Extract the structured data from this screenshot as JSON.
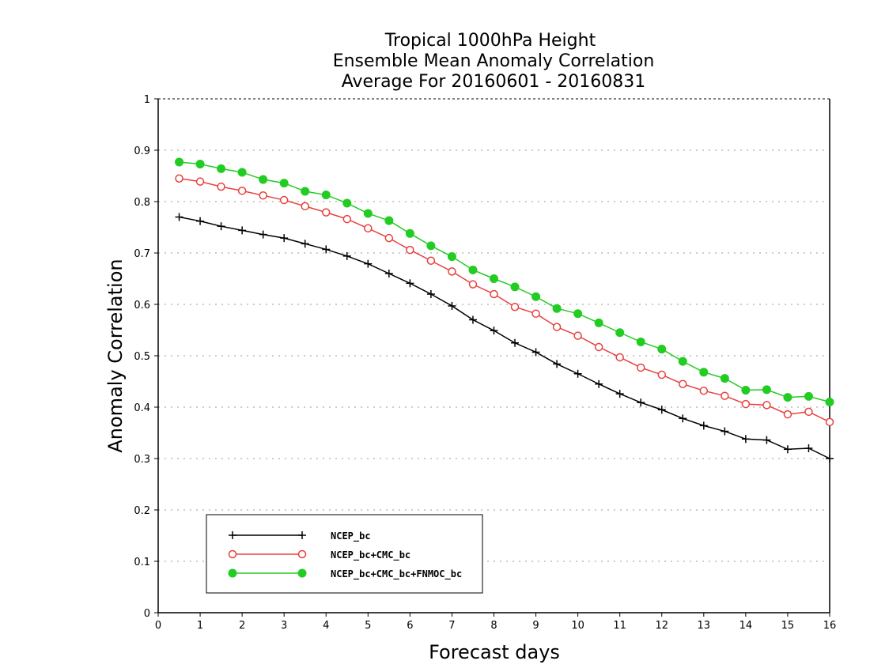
{
  "chart_data": {
    "type": "line",
    "title": [
      "Tropical 1000hPa Height",
      "Ensemble Mean Anomaly Correlation",
      "Average For 20160601 - 20160831"
    ],
    "xlabel": "Forecast days",
    "ylabel": "Anomaly Correlation",
    "xlim": [
      0,
      16
    ],
    "ylim": [
      0,
      1
    ],
    "xticks": [
      0,
      1,
      2,
      3,
      4,
      5,
      6,
      7,
      8,
      9,
      10,
      11,
      12,
      13,
      14,
      15,
      16
    ],
    "yticks": [
      0,
      0.1,
      0.2,
      0.3,
      0.4,
      0.5,
      0.6,
      0.7,
      0.8,
      0.9,
      1
    ],
    "xtick_labels": [
      "0",
      "1",
      "2",
      "3",
      "4",
      "5",
      "6",
      "7",
      "8",
      "9",
      "10",
      "11",
      "12",
      "13",
      "14",
      "15",
      "16"
    ],
    "ytick_labels": [
      "0",
      "0.1",
      "0.2",
      "0.3",
      "0.4",
      "0.5",
      "0.6",
      "0.7",
      "0.8",
      "0.9",
      "1"
    ],
    "grid": "horizontal dotted",
    "legend_position": "bottom-left",
    "x": [
      0.5,
      1,
      1.5,
      2,
      2.5,
      3,
      3.5,
      4,
      4.5,
      5,
      5.5,
      6,
      6.5,
      7,
      7.5,
      8,
      8.5,
      9,
      9.5,
      10,
      10.5,
      11,
      11.5,
      12,
      12.5,
      13,
      13.5,
      14,
      14.5,
      15,
      15.5,
      16
    ],
    "series": [
      {
        "name": "NCEP_bc",
        "color": "#000000",
        "marker": "plus",
        "values": [
          0.77,
          0.762,
          0.752,
          0.744,
          0.736,
          0.729,
          0.718,
          0.707,
          0.694,
          0.679,
          0.66,
          0.641,
          0.62,
          0.597,
          0.57,
          0.549,
          0.525,
          0.507,
          0.484,
          0.465,
          0.445,
          0.426,
          0.409,
          0.395,
          0.378,
          0.364,
          0.353,
          0.338,
          0.336,
          0.318,
          0.32,
          0.3
        ]
      },
      {
        "name": "NCEP_bc+CMC_bc",
        "color": "#e8403c",
        "marker": "open-circle",
        "values": [
          0.845,
          0.839,
          0.829,
          0.821,
          0.812,
          0.803,
          0.791,
          0.779,
          0.766,
          0.748,
          0.729,
          0.706,
          0.685,
          0.664,
          0.639,
          0.62,
          0.595,
          0.582,
          0.556,
          0.539,
          0.517,
          0.497,
          0.477,
          0.463,
          0.445,
          0.432,
          0.422,
          0.406,
          0.404,
          0.386,
          0.391,
          0.371
        ]
      },
      {
        "name": "NCEP_bc+CMC_bc+FNMOC_bc",
        "color": "#22cc22",
        "marker": "filled-circle",
        "values": [
          0.877,
          0.873,
          0.864,
          0.857,
          0.843,
          0.836,
          0.82,
          0.813,
          0.797,
          0.777,
          0.763,
          0.738,
          0.714,
          0.693,
          0.667,
          0.65,
          0.634,
          0.615,
          0.592,
          0.582,
          0.564,
          0.545,
          0.527,
          0.513,
          0.489,
          0.468,
          0.456,
          0.433,
          0.434,
          0.419,
          0.421,
          0.41
        ]
      }
    ]
  }
}
